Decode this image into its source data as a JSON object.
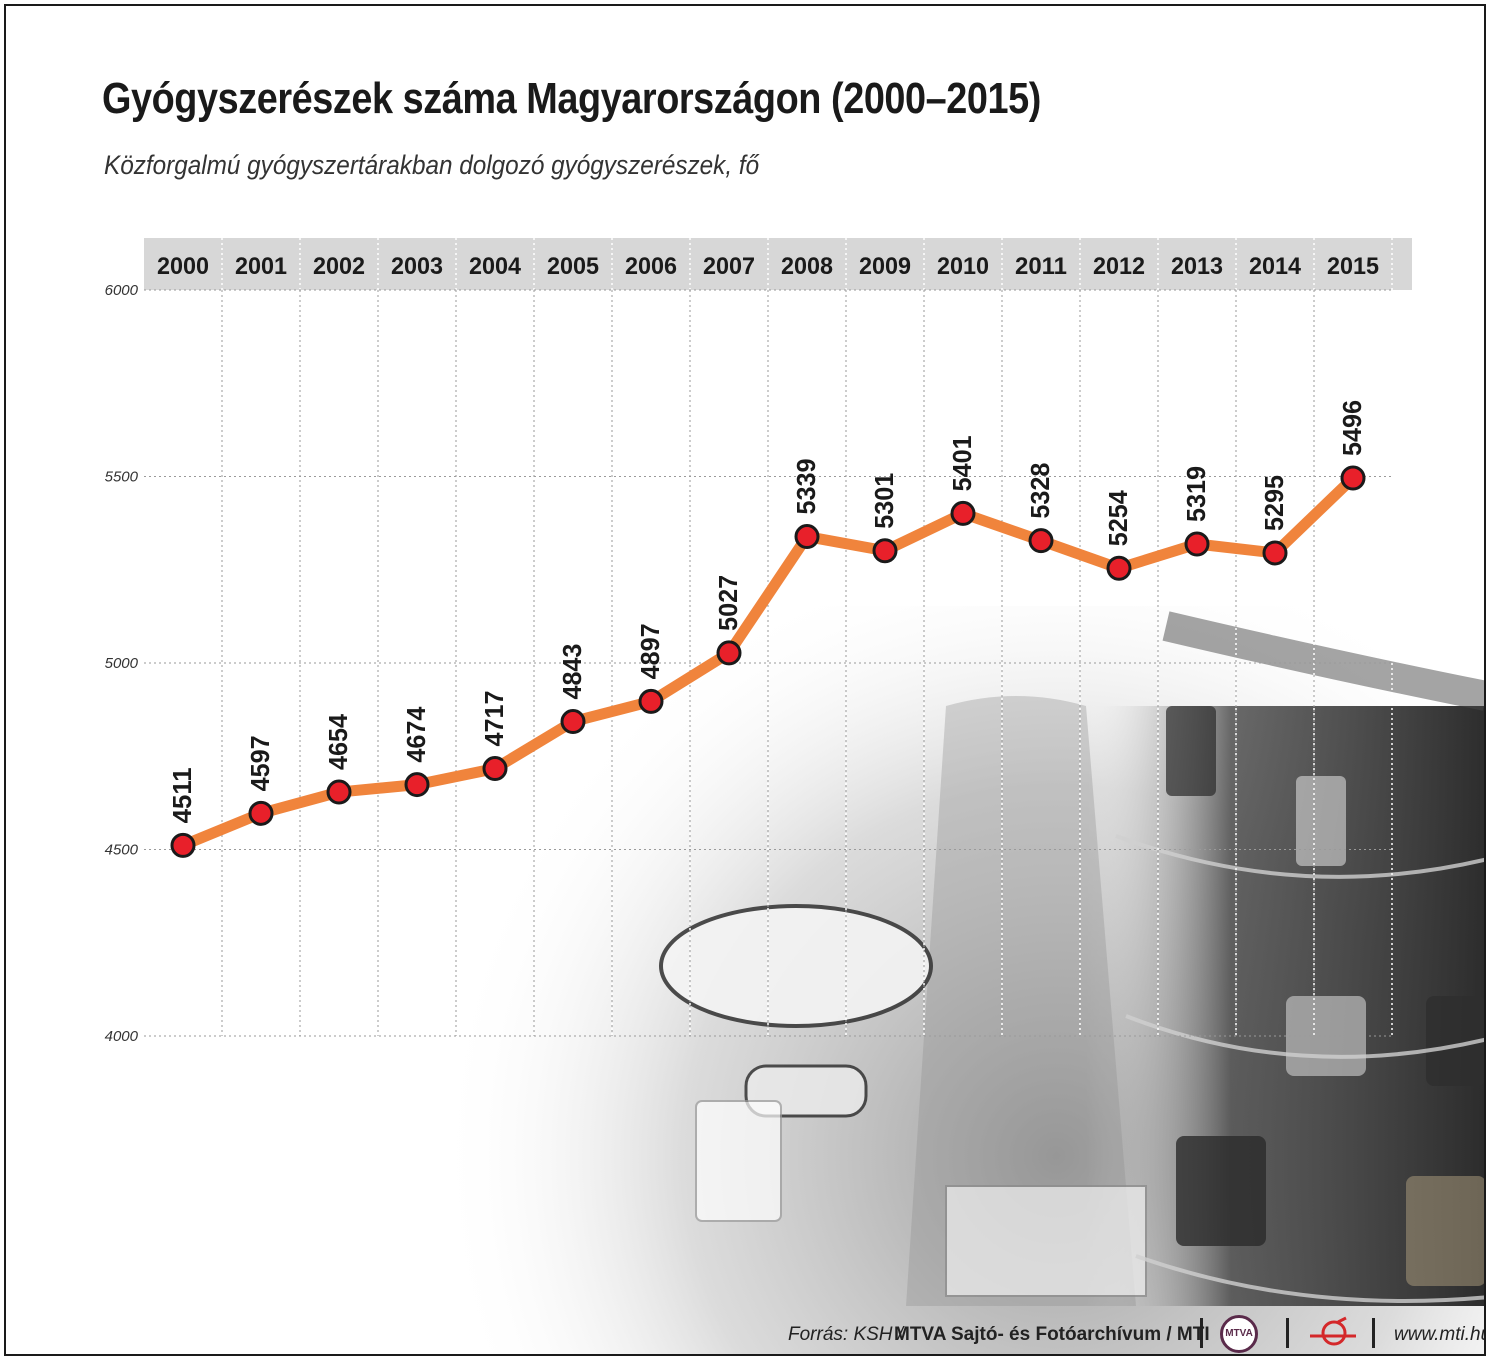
{
  "title": "Gyógyszerészek száma Magyarországon (2000–2015)",
  "subtitle": "Közforgalmú gyógyszertárakban dolgozó gyógyszerészek, fő",
  "colors": {
    "line": "#f0843c",
    "marker_fill": "#e8202a",
    "marker_stroke": "#1a1a1a",
    "header_band": "#d7d7d7",
    "grid": "#9a9a9a",
    "text": "#1a1a1a"
  },
  "chart_data": {
    "type": "line",
    "title": "Gyógyszerészek száma Magyarországon (2000–2015)",
    "subtitle": "Közforgalmú gyógyszertárakban dolgozó gyógyszerészek, fő",
    "categories": [
      "2000",
      "2001",
      "2002",
      "2003",
      "2004",
      "2005",
      "2006",
      "2007",
      "2008",
      "2009",
      "2010",
      "2011",
      "2012",
      "2013",
      "2014",
      "2015"
    ],
    "series": [
      {
        "values": [
          4511,
          4597,
          4654,
          4674,
          4717,
          4843,
          4897,
          5027,
          5339,
          5301,
          5401,
          5328,
          5254,
          5319,
          5295,
          5496
        ]
      }
    ],
    "yticks": [
      4000,
      4500,
      5000,
      5500,
      6000
    ],
    "ylim": [
      4000,
      6000
    ],
    "xlabel": "",
    "ylabel": "",
    "grid": true,
    "category_axis_position": "top",
    "data_labels": true
  },
  "footer": {
    "source_label": "Forrás: KSH /",
    "source_credit": "MTVA Sajtó- és Fotóarchívum / MTI",
    "mtva_logo_text": "MTVA",
    "url": "www.mti.hu"
  }
}
